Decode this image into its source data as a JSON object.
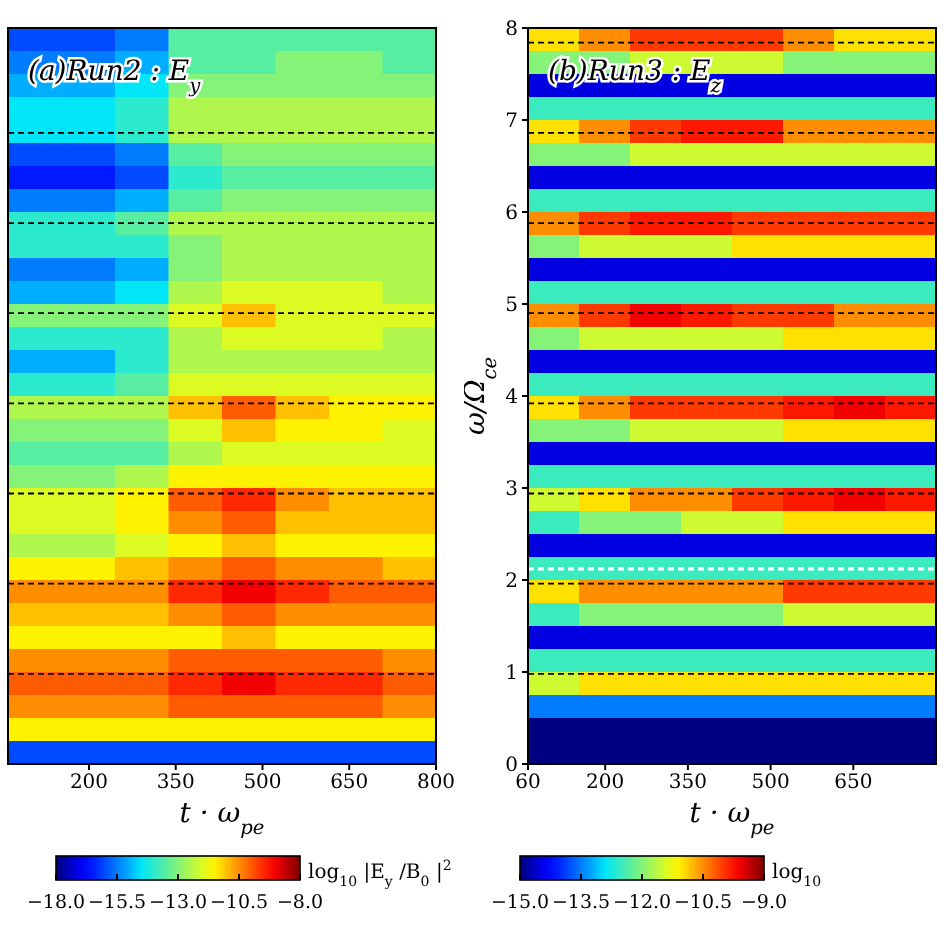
{
  "chart_data": [
    {
      "type": "heatmap",
      "annotations": [
        "(a)Run2 : E$_{y}$"
      ],
      "xlabel": "t · ω$_{pe}$",
      "clabel": "log$_{10}$ |E$_{y}$/B$_{0}$|$^{2}$",
      "x": [
        106.25,
        198.75,
        291.25,
        383.75,
        476.25,
        568.75,
        661.25,
        753.75
      ],
      "y": [
        7.875,
        7.625,
        7.375,
        7.125,
        6.875,
        6.625,
        6.375,
        6.125,
        5.875,
        5.625,
        5.375,
        5.125,
        4.875,
        4.625,
        4.375,
        4.125,
        3.875,
        3.625,
        3.375,
        3.125,
        2.875,
        2.625,
        2.375,
        2.125,
        1.875,
        1.625,
        1.375,
        1.125,
        0.875,
        0.625,
        0.375,
        0.125
      ],
      "xlim": [
        60,
        800
      ],
      "xticks": [
        200,
        350,
        500,
        650,
        800
      ],
      "ylim": [
        0,
        8
      ],
      "tick_labels": "x",
      "clim": [
        -18,
        -8
      ],
      "cticks": [
        {
          "value": -18,
          "label": "−18.0"
        },
        {
          "value": -15.5,
          "label": "−15.5"
        },
        {
          "value": -13,
          "label": "−13.0"
        },
        {
          "value": -10.5,
          "label": "−10.5"
        },
        {
          "value": -8,
          "label": "−8.0"
        }
      ],
      "ref_lines": [
        {
          "axis": "y",
          "value": 0.98,
          "color": "#000000",
          "line_style": "dashed"
        },
        {
          "axis": "y",
          "value": 1.96,
          "color": "#000000",
          "line_style": "dashed"
        },
        {
          "axis": "y",
          "value": 2.94,
          "color": "#000000",
          "line_style": "dashed"
        },
        {
          "axis": "y",
          "value": 3.92,
          "color": "#000000",
          "line_style": "dashed"
        },
        {
          "axis": "y",
          "value": 4.9,
          "color": "#000000",
          "line_style": "dashed"
        },
        {
          "axis": "y",
          "value": 5.88,
          "color": "#000000",
          "line_style": "dashed"
        },
        {
          "axis": "y",
          "value": 6.86,
          "color": "#000000",
          "line_style": "dashed"
        }
      ],
      "cells": [
        [
          -16,
          -16,
          -15.5,
          -13.5,
          -13.5,
          -13.5,
          -13.5,
          -13.5
        ],
        [
          -15.5,
          -15.5,
          -15,
          -13.5,
          -13.5,
          -13,
          -13,
          -13.5
        ],
        [
          -15,
          -15,
          -14.5,
          -13,
          -13,
          -13,
          -13,
          -13
        ],
        [
          -14.5,
          -14.5,
          -14,
          -12.5,
          -12.5,
          -12.5,
          -12.5,
          -12.5
        ],
        [
          -14.5,
          -14.5,
          -14,
          -12.5,
          -12.5,
          -12.5,
          -12.5,
          -12.5
        ],
        [
          -16,
          -16,
          -15.5,
          -13.5,
          -13,
          -13,
          -13,
          -13
        ],
        [
          -16.5,
          -16.5,
          -16,
          -14,
          -13.5,
          -13.5,
          -13.5,
          -13.5
        ],
        [
          -15.5,
          -15.5,
          -15,
          -13.5,
          -13,
          -13,
          -13,
          -13
        ],
        [
          -14,
          -14,
          -13.5,
          -12.5,
          -12.5,
          -12.5,
          -12.5,
          -12.5
        ],
        [
          -14,
          -14,
          -14,
          -13,
          -12.5,
          -12.5,
          -12.5,
          -12.5
        ],
        [
          -15.5,
          -15.5,
          -15,
          -13,
          -12.5,
          -12.5,
          -12.5,
          -12.5
        ],
        [
          -15,
          -15,
          -14.5,
          -12.5,
          -12,
          -12,
          -12,
          -12.5
        ],
        [
          -13,
          -13,
          -13,
          -12,
          -11,
          -12,
          -12,
          -12
        ],
        [
          -14,
          -14,
          -14,
          -12.5,
          -12,
          -12,
          -12,
          -12.5
        ],
        [
          -15,
          -15,
          -14,
          -12.5,
          -12.5,
          -12.5,
          -12.5,
          -12.5
        ],
        [
          -14,
          -14,
          -13.5,
          -12,
          -12,
          -12,
          -12,
          -12
        ],
        [
          -12.5,
          -12.5,
          -12.5,
          -11,
          -10,
          -11,
          -11.5,
          -11.5
        ],
        [
          -13,
          -13,
          -13,
          -12,
          -11,
          -11.5,
          -11.5,
          -12
        ],
        [
          -13.5,
          -13.5,
          -13.5,
          -12.5,
          -12,
          -12,
          -12,
          -12
        ],
        [
          -13,
          -13,
          -12.5,
          -11.5,
          -11.5,
          -11.5,
          -11.5,
          -11.5
        ],
        [
          -12,
          -12,
          -11.5,
          -10,
          -9.5,
          -10.5,
          -11,
          -11
        ],
        [
          -12,
          -12,
          -11.5,
          -10.5,
          -10,
          -11,
          -11,
          -11
        ],
        [
          -12.5,
          -12.5,
          -12,
          -11.5,
          -11,
          -11.5,
          -11.5,
          -11.5
        ],
        [
          -11.5,
          -11.5,
          -11,
          -10.5,
          -10,
          -10.5,
          -10.5,
          -11
        ],
        [
          -10.5,
          -10.5,
          -10.5,
          -9.5,
          -9,
          -9.5,
          -10,
          -10
        ],
        [
          -11,
          -11,
          -11,
          -10.5,
          -10,
          -10.5,
          -10.5,
          -10.5
        ],
        [
          -11.5,
          -11.5,
          -11.5,
          -11.5,
          -11,
          -11.5,
          -11.5,
          -11.5
        ],
        [
          -10.5,
          -10.5,
          -10.5,
          -10,
          -10,
          -10,
          -10,
          -10.5
        ],
        [
          -10,
          -10,
          -10,
          -9.5,
          -9,
          -9.5,
          -9.5,
          -10
        ],
        [
          -10.5,
          -10.5,
          -10.5,
          -10,
          -10,
          -10,
          -10,
          -10.5
        ],
        [
          -11.5,
          -11.5,
          -11.5,
          -11.5,
          -11.5,
          -11.5,
          -11.5,
          -11.5
        ],
        [
          -16,
          -16,
          -16,
          -16,
          -16,
          -16,
          -16,
          -16
        ]
      ]
    },
    {
      "type": "heatmap",
      "annotations": [
        "(b)Run3 : E$_{z}$"
      ],
      "xlabel": "t · ω$_{pe}$",
      "ylabel": "ω/Ω$_{ce}$",
      "clabel": "log$_{10}$",
      "x": [
        106.25,
        198.75,
        291.25,
        383.75,
        476.25,
        568.75,
        661.25,
        753.75
      ],
      "y": [
        7.875,
        7.625,
        7.375,
        7.125,
        6.875,
        6.625,
        6.375,
        6.125,
        5.875,
        5.625,
        5.375,
        5.125,
        4.875,
        4.625,
        4.375,
        4.125,
        3.875,
        3.625,
        3.375,
        3.125,
        2.875,
        2.625,
        2.375,
        2.125,
        1.875,
        1.625,
        1.375,
        1.125,
        0.875,
        0.625,
        0.375,
        0.125
      ],
      "xlim": [
        60,
        800
      ],
      "xticks": [
        60,
        200,
        350,
        500,
        650
      ],
      "ylim": [
        0,
        8
      ],
      "yticks": [
        0,
        1,
        2,
        3,
        4,
        5,
        6,
        7,
        8
      ],
      "clim": [
        -15,
        -9
      ],
      "cticks": [
        {
          "value": -15,
          "label": "−15.0"
        },
        {
          "value": -13.5,
          "label": "−13.5"
        },
        {
          "value": -12,
          "label": "−12.0"
        },
        {
          "value": -10.5,
          "label": "−10.5"
        },
        {
          "value": -9,
          "label": "−9.0"
        }
      ],
      "ref_lines": [
        {
          "axis": "y",
          "value": 0.98,
          "color": "#000000",
          "line_style": "dashed"
        },
        {
          "axis": "y",
          "value": 1.96,
          "color": "#000000",
          "line_style": "dashed"
        },
        {
          "axis": "y",
          "value": 2.12,
          "color": "#ffffff",
          "line_style": "dashed"
        },
        {
          "axis": "y",
          "value": 2.94,
          "color": "#000000",
          "line_style": "dashed"
        },
        {
          "axis": "y",
          "value": 3.92,
          "color": "#000000",
          "line_style": "dashed"
        },
        {
          "axis": "y",
          "value": 4.9,
          "color": "#000000",
          "line_style": "dashed"
        },
        {
          "axis": "y",
          "value": 5.88,
          "color": "#000000",
          "line_style": "dashed"
        },
        {
          "axis": "y",
          "value": 6.86,
          "color": "#000000",
          "line_style": "dashed"
        },
        {
          "axis": "y",
          "value": 7.84,
          "color": "#000000",
          "line_style": "dashed"
        }
      ],
      "cells": [
        [
          -11,
          -10.5,
          -10,
          -10,
          -10,
          -10.5,
          -11,
          -11
        ],
        [
          -12,
          -12,
          -11.5,
          -11.5,
          -11.5,
          -12,
          -12,
          -12
        ],
        [
          -14.5,
          -14.5,
          -14.5,
          -14.5,
          -14.5,
          -14.5,
          -14.5,
          -14.5
        ],
        [
          -12.5,
          -12.5,
          -12.5,
          -12.5,
          -12.5,
          -12.5,
          -12.5,
          -12.5
        ],
        [
          -11,
          -10.5,
          -10,
          -9.8,
          -9.8,
          -10.5,
          -10.5,
          -10.5
        ],
        [
          -12,
          -12,
          -11.5,
          -11.5,
          -11.5,
          -11.5,
          -11.5,
          -11.5
        ],
        [
          -14.5,
          -14.5,
          -14.5,
          -14.5,
          -14.5,
          -14.5,
          -14.5,
          -14.5
        ],
        [
          -12.5,
          -12.5,
          -12.5,
          -12.5,
          -12.5,
          -12.5,
          -12.5,
          -12.5
        ],
        [
          -10.5,
          -10,
          -9.8,
          -9.8,
          -10,
          -10,
          -10,
          -10
        ],
        [
          -12,
          -11.5,
          -11.5,
          -11.5,
          -11,
          -11,
          -11,
          -11
        ],
        [
          -14.5,
          -14.5,
          -14.5,
          -14.5,
          -14.5,
          -14.5,
          -14.5,
          -14.5
        ],
        [
          -12.5,
          -12.5,
          -12.5,
          -12.5,
          -12.5,
          -12.5,
          -12.5,
          -12.5
        ],
        [
          -10.5,
          -10,
          -9.6,
          -9.8,
          -10,
          -10,
          -10.5,
          -10.5
        ],
        [
          -12,
          -11.5,
          -11.5,
          -11.5,
          -11.5,
          -11,
          -11,
          -11
        ],
        [
          -14.5,
          -14.5,
          -14.5,
          -14.5,
          -14.5,
          -14.5,
          -14.5,
          -14.5
        ],
        [
          -12.5,
          -12.5,
          -12.5,
          -12.5,
          -12.5,
          -12.5,
          -12.5,
          -12.5
        ],
        [
          -11,
          -10.5,
          -10,
          -10,
          -10,
          -9.8,
          -9.6,
          -9.8
        ],
        [
          -12,
          -12,
          -11.5,
          -11.5,
          -11.5,
          -11,
          -11,
          -11
        ],
        [
          -14.5,
          -14.5,
          -14.5,
          -14.5,
          -14.5,
          -14.5,
          -14.5,
          -14.5
        ],
        [
          -12.5,
          -12.5,
          -12.5,
          -12.5,
          -12.5,
          -12.5,
          -12.5,
          -12.5
        ],
        [
          -11.5,
          -11,
          -10.5,
          -10.5,
          -10,
          -9.8,
          -9.6,
          -9.8
        ],
        [
          -12.5,
          -12,
          -12,
          -11.5,
          -11.5,
          -11,
          -11,
          -11
        ],
        [
          -14.5,
          -14.5,
          -14.5,
          -14.5,
          -14.5,
          -14.5,
          -14.5,
          -14.5
        ],
        [
          -12.5,
          -12.5,
          -12.5,
          -12.5,
          -12.5,
          -12.5,
          -12.5,
          -12.5
        ],
        [
          -11,
          -10.5,
          -10.5,
          -10.5,
          -10.5,
          -10,
          -10,
          -10
        ],
        [
          -12.5,
          -12,
          -12,
          -12,
          -12,
          -11.5,
          -11.5,
          -11.5
        ],
        [
          -14.5,
          -14.5,
          -14.5,
          -14.5,
          -14.5,
          -14.5,
          -14.5,
          -14.5
        ],
        [
          -12.5,
          -12.5,
          -12.5,
          -12.5,
          -12.5,
          -12.5,
          -12.5,
          -12.5
        ],
        [
          -11.5,
          -11,
          -11,
          -11,
          -11,
          -11,
          -11,
          -11
        ],
        [
          -13.5,
          -13.5,
          -13.5,
          -13.5,
          -13.5,
          -13.5,
          -13.5,
          -13.5
        ],
        [
          -15,
          -15,
          -15,
          -15,
          -15,
          -15,
          -15,
          -15
        ],
        [
          -15,
          -15,
          -15,
          -15,
          -15,
          -15,
          -15,
          -15
        ]
      ]
    }
  ]
}
